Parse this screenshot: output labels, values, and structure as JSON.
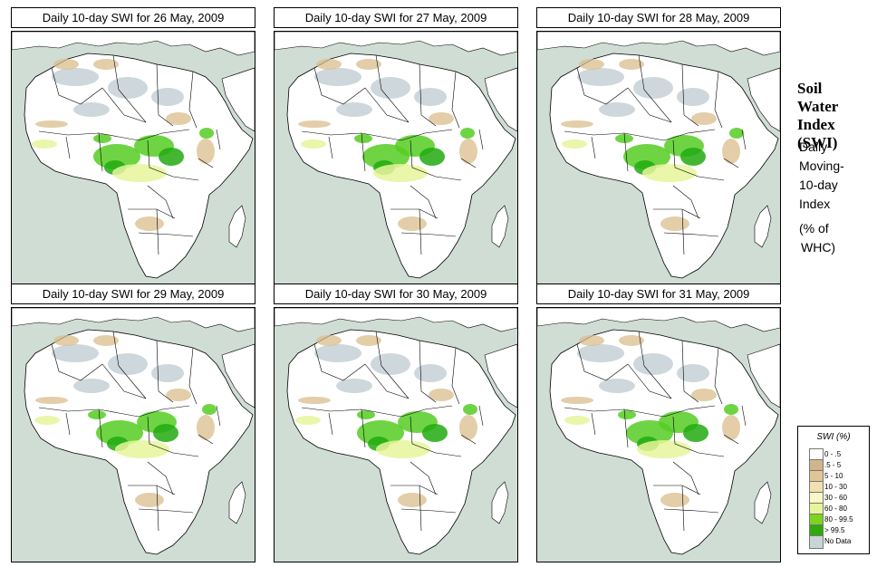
{
  "panels": [
    {
      "title": "Daily 10-day SWI for  26 May, 2009"
    },
    {
      "title": "Daily 10-day SWI for  27 May, 2009"
    },
    {
      "title": "Daily 10-day SWI for  28 May, 2009"
    },
    {
      "title": "Daily 10-day SWI for  29 May, 2009"
    },
    {
      "title": "Daily 10-day SWI for  30 May, 2009"
    },
    {
      "title": "Daily 10-day SWI for  31 May, 2009"
    }
  ],
  "side": {
    "title_line1": "Soil",
    "title_line2": "Water",
    "title_line3": "Index",
    "title_line4": "(SWI)",
    "sub_line1": "Daily",
    "sub_line2": "Moving-",
    "sub_line3": "10-day",
    "sub_line4": "Index",
    "unit_line1": "(% of",
    "unit_line2": "WHC)"
  },
  "legend": {
    "title": "SWI (%)",
    "items": [
      {
        "label": "0 - .5",
        "color": "#ffffff"
      },
      {
        "label": ".5 - 5",
        "color": "#d2b48c"
      },
      {
        "label": "5 - 10",
        "color": "#e2c596"
      },
      {
        "label": "10 - 30",
        "color": "#f2dfb2"
      },
      {
        "label": "30 - 60",
        "color": "#fbf6c4"
      },
      {
        "label": "60 - 80",
        "color": "#e6f59a"
      },
      {
        "label": "80 - 99.5",
        "color": "#7ed321"
      },
      {
        "label": "> 99.5",
        "color": "#2eaa0c"
      },
      {
        "label": "No Data",
        "color": "#c9d3d8"
      }
    ]
  },
  "colors": {
    "ocean": "#cfddd5",
    "land": "#ffffff",
    "desert_nodata": "#c9d3d8",
    "dry_tan": "#d9bd8c",
    "wet_green": "#55cc22",
    "very_wet": "#22aa11",
    "moist_yellow": "#e6f59a"
  }
}
